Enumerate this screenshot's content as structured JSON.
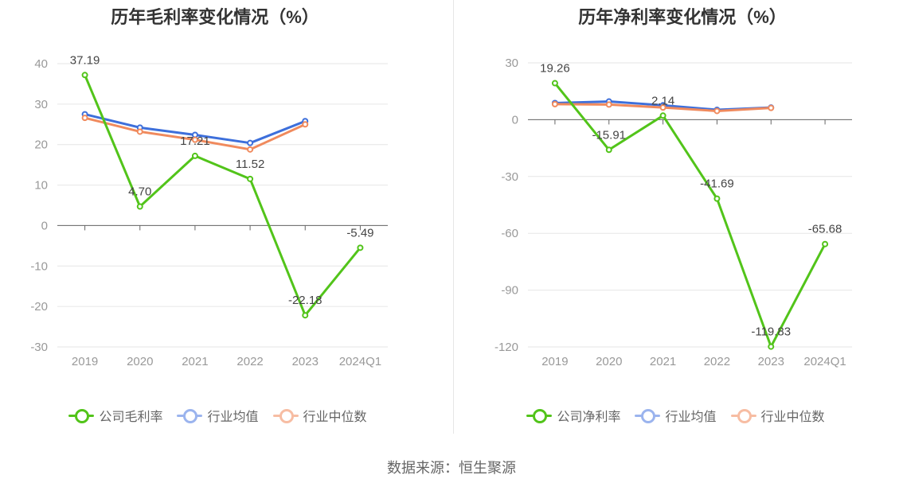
{
  "source": "数据来源：恒生聚源",
  "chart_data": [
    {
      "type": "line",
      "title": "历年毛利率变化情况（%）",
      "categories": [
        "2019",
        "2020",
        "2021",
        "2022",
        "2023",
        "2024Q1"
      ],
      "ylim": [
        -30,
        40
      ],
      "yticks": [
        40,
        30,
        20,
        10,
        0,
        -10,
        -20,
        -30
      ],
      "grid": true,
      "legend_position": "bottom",
      "series": [
        {
          "name": "公司毛利率",
          "color": "#52c41a",
          "values": [
            37.19,
            4.7,
            17.21,
            11.52,
            -22.18,
            -5.49
          ],
          "labels": [
            "37.19",
            "4.70",
            "17.21",
            "11.52",
            "-22.18",
            "-5.49"
          ]
        },
        {
          "name": "行业均值",
          "color": "#3d6fdb",
          "values": [
            27.5,
            24.2,
            22.4,
            20.4,
            25.8,
            null
          ]
        },
        {
          "name": "行业中位数",
          "color": "#f08a5d",
          "values": [
            26.6,
            23.2,
            21.2,
            18.8,
            25.0,
            null
          ]
        }
      ]
    },
    {
      "type": "line",
      "title": "历年净利率变化情况（%）",
      "categories": [
        "2019",
        "2020",
        "2021",
        "2022",
        "2023",
        "2024Q1"
      ],
      "ylim": [
        -120,
        30
      ],
      "yticks": [
        30,
        0,
        -30,
        -60,
        -90,
        -120
      ],
      "grid": true,
      "legend_position": "bottom",
      "series": [
        {
          "name": "公司净利率",
          "color": "#52c41a",
          "values": [
            19.26,
            -15.91,
            2.14,
            -41.69,
            -119.83,
            -65.68
          ],
          "labels": [
            "19.26",
            "-15.91",
            "2.14",
            "-41.69",
            "-119.83",
            "-65.68"
          ]
        },
        {
          "name": "行业均值",
          "color": "#3d6fdb",
          "values": [
            8.8,
            9.6,
            7.6,
            5.2,
            6.4,
            null
          ]
        },
        {
          "name": "行业中位数",
          "color": "#f08a5d",
          "values": [
            8.2,
            8.0,
            6.4,
            4.6,
            6.2,
            null
          ]
        }
      ]
    }
  ]
}
